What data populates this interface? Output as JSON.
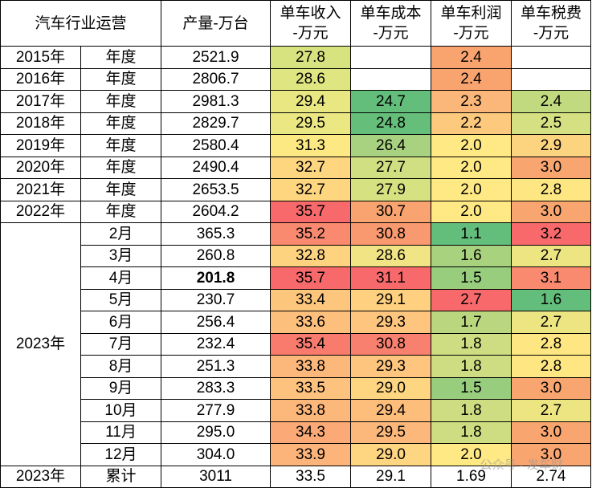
{
  "headers": {
    "industry": "汽车行业运营",
    "production": "产量-万台",
    "revenue_line1": "单车收入",
    "revenue_line2": "-万元",
    "cost_line1": "单车成本",
    "cost_line2": "-万元",
    "profit_line1": "单车利润",
    "profit_line2": "-万元",
    "tax_line1": "单车税费",
    "tax_line2": "-万元"
  },
  "annual_rows": [
    {
      "year": "2015年",
      "period": "年度",
      "production": "2521.9",
      "revenue": "27.8",
      "cost": "",
      "profit": "2.4",
      "tax": "",
      "colors": {
        "revenue": "#d6e37f",
        "cost": "#ffffff",
        "profit": "#f9a36f",
        "tax": "#ffffff"
      }
    },
    {
      "year": "2016年",
      "period": "年度",
      "production": "2806.7",
      "revenue": "28.6",
      "cost": "",
      "profit": "2.4",
      "tax": "",
      "colors": {
        "revenue": "#dfe580",
        "cost": "#ffffff",
        "profit": "#f9a36f",
        "tax": "#ffffff"
      }
    },
    {
      "year": "2017年",
      "period": "年度",
      "production": "2981.3",
      "revenue": "29.4",
      "cost": "24.7",
      "profit": "2.3",
      "tax": "2.4",
      "colors": {
        "revenue": "#e8e782",
        "cost": "#63be7b",
        "profit": "#fbb679",
        "tax": "#c2da7f"
      }
    },
    {
      "year": "2018年",
      "period": "年度",
      "production": "2829.7",
      "revenue": "29.5",
      "cost": "24.8",
      "profit": "2.2",
      "tax": "2.5",
      "colors": {
        "revenue": "#ebe783",
        "cost": "#65bf7b",
        "profit": "#fdc97d",
        "tax": "#d4e081"
      }
    },
    {
      "year": "2019年",
      "period": "年度",
      "production": "2580.4",
      "revenue": "31.3",
      "cost": "26.4",
      "profit": "2.0",
      "tax": "2.9",
      "colors": {
        "revenue": "#fde983",
        "cost": "#a8d27f",
        "profit": "#ffe984",
        "tax": "#fcd47f"
      }
    },
    {
      "year": "2020年",
      "period": "年度",
      "production": "2490.4",
      "revenue": "32.7",
      "cost": "27.7",
      "profit": "2.0",
      "tax": "3.0",
      "colors": {
        "revenue": "#fed680",
        "cost": "#cfdf81",
        "profit": "#ffe984",
        "tax": "#f9a570"
      }
    },
    {
      "year": "2021年",
      "period": "年度",
      "production": "2653.5",
      "revenue": "32.7",
      "cost": "27.9",
      "profit": "2.0",
      "tax": "2.8",
      "colors": {
        "revenue": "#fed680",
        "cost": "#d6e182",
        "profit": "#ffe984",
        "tax": "#fee782"
      }
    },
    {
      "year": "2022年",
      "period": "年度",
      "production": "2604.2",
      "revenue": "35.7",
      "cost": "30.7",
      "profit": "2.0",
      "tax": "3.0",
      "colors": {
        "revenue": "#f8696b",
        "cost": "#f9a370",
        "profit": "#ffe984",
        "tax": "#f9a570"
      }
    }
  ],
  "year_2023_label": "2023年",
  "monthly_rows": [
    {
      "month": "2月",
      "production": "365.3",
      "revenue": "35.2",
      "cost": "30.8",
      "profit": "1.1",
      "tax": "3.2",
      "bold_production": false,
      "colors": {
        "revenue": "#f98a70",
        "cost": "#f9996f",
        "profit": "#63be7b",
        "tax": "#f8696b"
      }
    },
    {
      "month": "3月",
      "production": "260.8",
      "revenue": "32.8",
      "cost": "28.6",
      "profit": "1.6",
      "tax": "2.7",
      "bold_production": false,
      "colors": {
        "revenue": "#fed380",
        "cost": "#f1e484",
        "profit": "#a9d27f",
        "tax": "#ece582"
      }
    },
    {
      "month": "4月",
      "production": "201.8",
      "revenue": "35.7",
      "cost": "31.1",
      "profit": "1.5",
      "tax": "3.1",
      "bold_production": true,
      "colors": {
        "revenue": "#f8696b",
        "cost": "#f8696b",
        "profit": "#98cd7e",
        "tax": "#f98a70"
      }
    },
    {
      "month": "5月",
      "production": "230.7",
      "revenue": "33.4",
      "cost": "29.1",
      "profit": "2.7",
      "tax": "1.6",
      "bold_production": false,
      "colors": {
        "revenue": "#fdc67d",
        "cost": "#fed07f",
        "profit": "#f8696b",
        "tax": "#63be7b"
      }
    },
    {
      "month": "6月",
      "production": "256.4",
      "revenue": "33.6",
      "cost": "29.3",
      "profit": "1.7",
      "tax": "2.7",
      "bold_production": false,
      "colors": {
        "revenue": "#fdbf7c",
        "cost": "#fdc57d",
        "profit": "#bad780",
        "tax": "#ece582"
      }
    },
    {
      "month": "7月",
      "production": "232.4",
      "revenue": "35.4",
      "cost": "30.8",
      "profit": "1.8",
      "tax": "2.8",
      "bold_production": false,
      "colors": {
        "revenue": "#f87b6e",
        "cost": "#f8806e",
        "profit": "#cedd81",
        "tax": "#fee782"
      }
    },
    {
      "month": "8月",
      "production": "251.3",
      "revenue": "33.8",
      "cost": "29.3",
      "profit": "1.8",
      "tax": "2.8",
      "bold_production": false,
      "colors": {
        "revenue": "#fcb77a",
        "cost": "#fdc57d",
        "profit": "#cedd81",
        "tax": "#fee782"
      }
    },
    {
      "month": "9月",
      "production": "283.3",
      "revenue": "33.5",
      "cost": "29.0",
      "profit": "1.5",
      "tax": "3.0",
      "bold_production": false,
      "colors": {
        "revenue": "#fdc27d",
        "cost": "#fed681",
        "profit": "#98cd7e",
        "tax": "#f9a570"
      }
    },
    {
      "month": "10月",
      "production": "277.9",
      "revenue": "33.8",
      "cost": "29.4",
      "profit": "1.8",
      "tax": "2.7",
      "bold_production": false,
      "colors": {
        "revenue": "#fcb77a",
        "cost": "#fdbd7b",
        "profit": "#cedd81",
        "tax": "#ece582"
      }
    },
    {
      "month": "11月",
      "production": "295.0",
      "revenue": "34.3",
      "cost": "29.5",
      "profit": "1.8",
      "tax": "3.0",
      "bold_production": false,
      "colors": {
        "revenue": "#fba976",
        "cost": "#fcb87a",
        "profit": "#cedd81",
        "tax": "#f9a570"
      }
    },
    {
      "month": "12月",
      "production": "304.0",
      "revenue": "33.9",
      "cost": "29.0",
      "profit": "2.0",
      "tax": "3.0",
      "bold_production": false,
      "colors": {
        "revenue": "#fcb47a",
        "cost": "#fed681",
        "profit": "#ffe984",
        "tax": "#f9a570"
      }
    }
  ],
  "cumulative": {
    "year": "2023年",
    "period": "累计",
    "production": "3011",
    "revenue": "33.5",
    "cost": "29.1",
    "profit": "1.69",
    "tax": "2.74"
  },
  "watermark": "公众号 · 发车财"
}
